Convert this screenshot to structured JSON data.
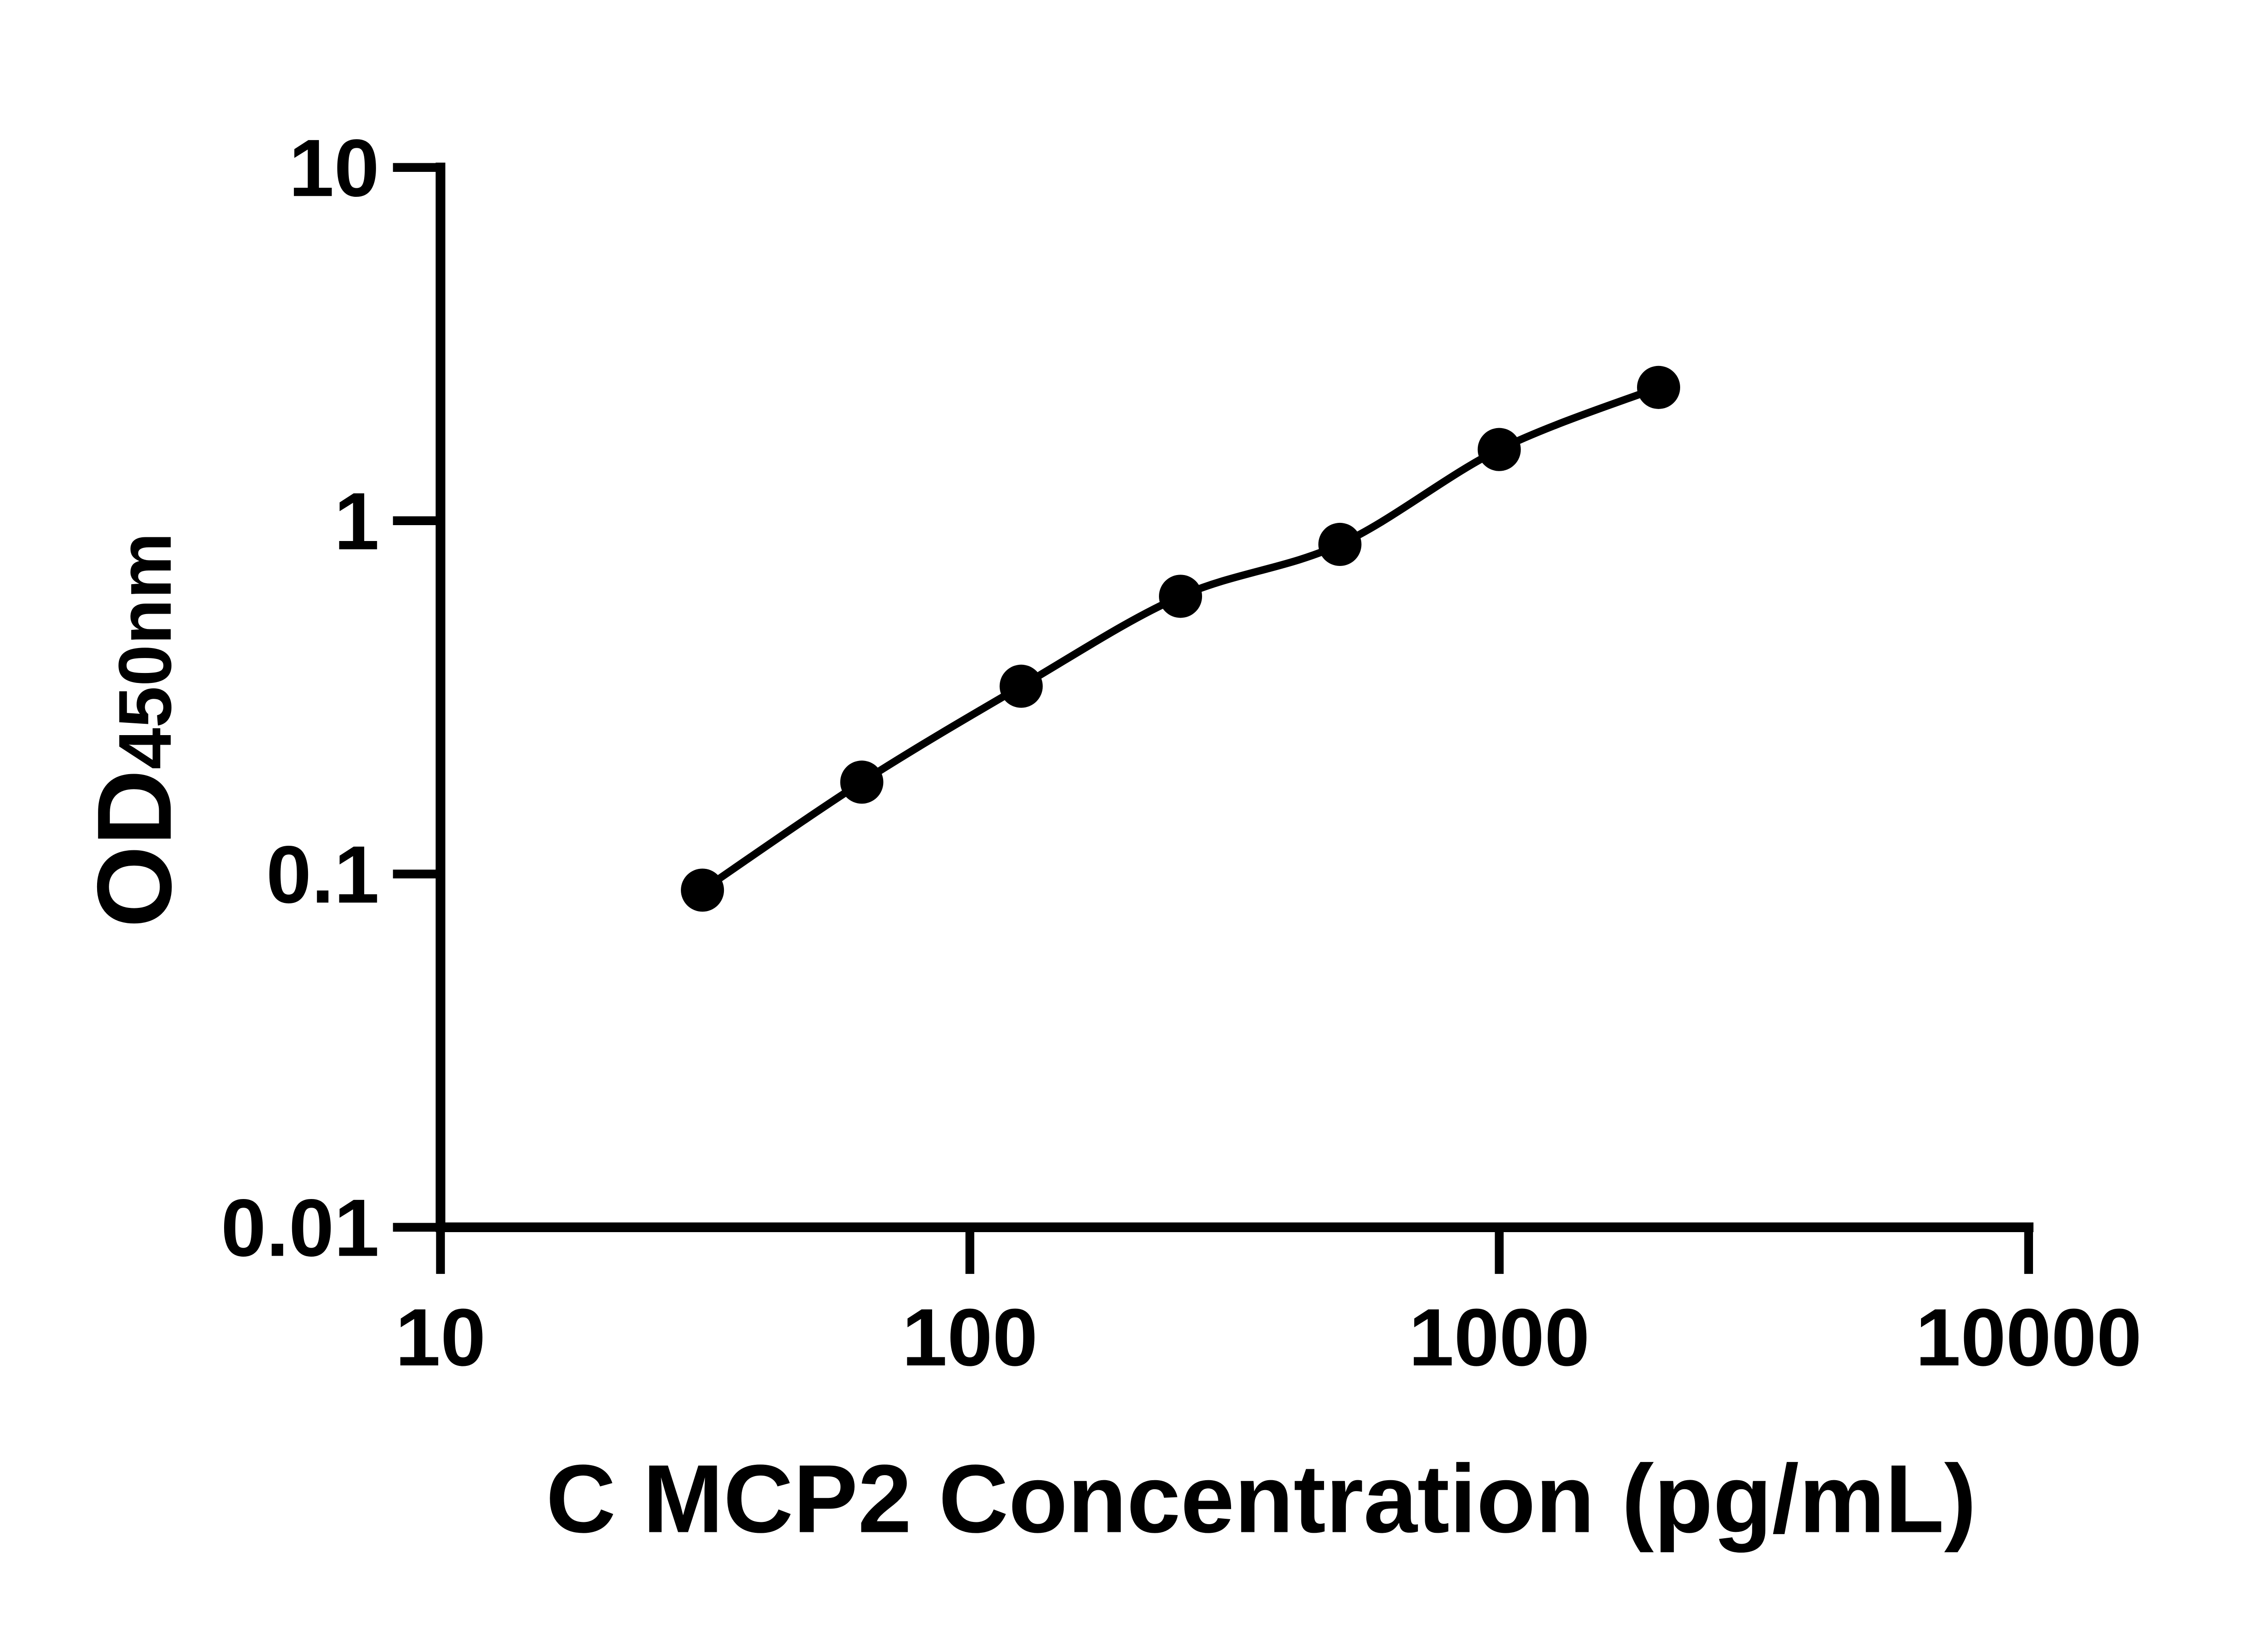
{
  "page": {
    "background_color": "#ffffff",
    "foreground_color": "#000000"
  },
  "chart_data": {
    "type": "scatter",
    "title": "",
    "xlabel": "C MCP2 Concentration (pg/mL)",
    "ylabel": "OD450nm",
    "ylabel_main": "OD",
    "ylabel_sub": "450nm",
    "x_scale": "log10",
    "y_scale": "log10",
    "xlim": [
      10,
      10000
    ],
    "ylim": [
      0.01,
      10
    ],
    "grid": false,
    "legend": false,
    "x_ticks": [
      {
        "value": 10,
        "label": "10"
      },
      {
        "value": 100,
        "label": "100"
      },
      {
        "value": 1000,
        "label": "1000"
      },
      {
        "value": 10000,
        "label": "10000"
      }
    ],
    "y_ticks": [
      {
        "value": 10,
        "label": "10"
      },
      {
        "value": 1,
        "label": "1"
      },
      {
        "value": 0.1,
        "label": "0.1"
      },
      {
        "value": 0.01,
        "label": "0.01"
      }
    ],
    "series": [
      {
        "name": "standard-curve",
        "marker": "circle",
        "marker_color": "#000000",
        "line_color": "#000000",
        "x": [
          31.25,
          62.5,
          125,
          250,
          500,
          1000,
          2000
        ],
        "y": [
          0.09,
          0.182,
          0.34,
          0.611,
          0.857,
          1.591,
          2.384
        ]
      }
    ]
  }
}
